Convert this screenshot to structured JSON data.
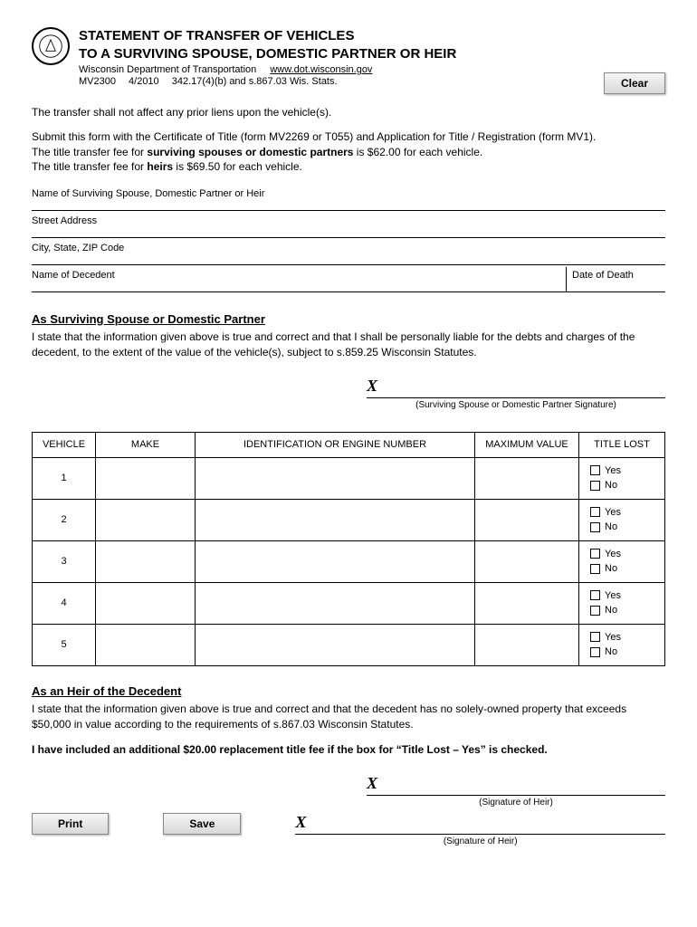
{
  "header": {
    "title1": "STATEMENT OF TRANSFER OF VEHICLES",
    "title2": "TO A SURVIVING SPOUSE, DOMESTIC PARTNER OR HEIR",
    "dept": "Wisconsin Department of Transportation",
    "url": "www.dot.wisconsin.gov",
    "meta": "MV2300  4/2010  342.17(4)(b) and s.867.03 Wis. Stats."
  },
  "buttons": {
    "clear": "Clear",
    "print": "Print",
    "save": "Save"
  },
  "intro": {
    "p1": "The transfer shall not affect any prior liens upon the vehicle(s).",
    "p2a": "Submit this form with the Certificate of Title (form MV2269 or T055) and Application for Title / Registration (form MV1).",
    "p2b_pre": "The title transfer fee for ",
    "p2b_bold": "surviving spouses or domestic partners",
    "p2b_post": " is $62.00 for each vehicle.",
    "p2c_pre": "The title transfer fee for ",
    "p2c_bold": "heirs",
    "p2c_post": " is $69.50 for each vehicle."
  },
  "fields": {
    "name": "Name of Surviving Spouse, Domestic Partner or Heir",
    "street": "Street Address",
    "city": "City, State, ZIP Code",
    "decedent": "Name of Decedent",
    "dod": "Date of Death"
  },
  "spouse": {
    "title": "As Surviving Spouse or Domestic Partner",
    "statement": "I state that the information given above is true and correct and that I shall be personally liable for the debts and charges of the decedent, to the extent of the value of the vehicle(s), subject to s.859.25 Wisconsin Statutes.",
    "sig_x": "X",
    "sig_caption": "(Surviving Spouse or Domestic Partner Signature)"
  },
  "table": {
    "headers": {
      "vehicle": "VEHICLE",
      "make": "MAKE",
      "id": "IDENTIFICATION OR ENGINE NUMBER",
      "max": "MAXIMUM VALUE",
      "lost": "TITLE LOST"
    },
    "rows": [
      "1",
      "2",
      "3",
      "4",
      "5"
    ],
    "yes": "Yes",
    "no": "No"
  },
  "heir": {
    "title": "As an Heir of the Decedent",
    "statement": "I state that the information given above is true and correct and that the decedent has no solely-owned property that exceeds $50,000 in value according to the requirements of s.867.03 Wisconsin Statutes.",
    "bold_note": "I have included an additional $20.00 replacement title fee if the box for “Title Lost – Yes” is checked.",
    "sig_x": "X",
    "sig_caption": "(Signature of Heir)"
  }
}
